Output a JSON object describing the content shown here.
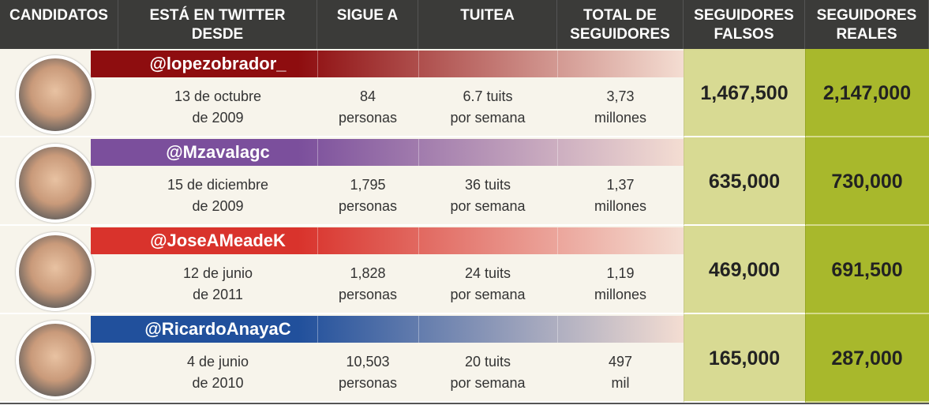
{
  "table": {
    "headers": [
      "CANDIDATOS",
      "ESTÁ EN TWITTER DESDE",
      "SIGUE A",
      "TUITEA",
      "TOTAL DE SEGUIDORES",
      "SEGUIDORES FALSOS",
      "SEGUIDORES REALES"
    ],
    "rows": [
      {
        "handle": "@lopezobrador_",
        "color": "#8e0d0f",
        "since": [
          "13 de octubre",
          "de 2009"
        ],
        "follows": [
          "84",
          "personas"
        ],
        "tweets": [
          "6.7 tuits",
          "por semana"
        ],
        "total": [
          "3,73",
          "millones"
        ],
        "fake": "1,467,500",
        "real": "2,147,000"
      },
      {
        "handle": "@Mzavalagc",
        "color": "#7b4f9c",
        "since": [
          "15 de diciembre",
          "de 2009"
        ],
        "follows": [
          "1,795",
          "personas"
        ],
        "tweets": [
          "36 tuits",
          "por semana"
        ],
        "total": [
          "1,37",
          "millones"
        ],
        "fake": "635,000",
        "real": "730,000"
      },
      {
        "handle": "@JoseAMeadeK",
        "color": "#d9332c",
        "since": [
          "12 de junio",
          "de 2011"
        ],
        "follows": [
          "1,828",
          "personas"
        ],
        "tweets": [
          "24 tuits",
          "por semana"
        ],
        "total": [
          "1,19",
          "millones"
        ],
        "fake": "469,000",
        "real": "691,500"
      },
      {
        "handle": "@RicardoAnayaC",
        "color": "#21509c",
        "since": [
          "4 de junio",
          "de 2010"
        ],
        "follows": [
          "10,503",
          "personas"
        ],
        "tweets": [
          "20 tuits",
          "por semana"
        ],
        "total": [
          "497",
          "mil"
        ],
        "fake": "165,000",
        "real": "287,000"
      }
    ]
  }
}
